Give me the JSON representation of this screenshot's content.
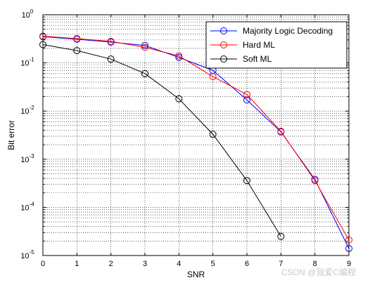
{
  "chart_data": {
    "type": "line",
    "title": "",
    "xlabel": "SNR",
    "ylabel": "Bit error",
    "x_scale": "linear",
    "y_scale": "log",
    "xlim": [
      0,
      9
    ],
    "ylim": [
      1e-05,
      1
    ],
    "x_ticks": [
      0,
      1,
      2,
      3,
      4,
      5,
      6,
      7,
      8,
      9
    ],
    "x_tick_labels": [
      "0",
      "1",
      "2",
      "3",
      "4",
      "5",
      "6",
      "7",
      "8",
      "9"
    ],
    "y_ticks": [
      {
        "value": 1e-05,
        "base": "10",
        "exp": "-5"
      },
      {
        "value": 0.0001,
        "base": "10",
        "exp": "-4"
      },
      {
        "value": 0.001,
        "base": "10",
        "exp": "-3"
      },
      {
        "value": 0.01,
        "base": "10",
        "exp": "-2"
      },
      {
        "value": 0.1,
        "base": "10",
        "exp": "-1"
      },
      {
        "value": 1,
        "base": "10",
        "exp": "0"
      }
    ],
    "grid": "dotted major and minor",
    "legend_position": "top-right",
    "series": [
      {
        "name": "Majority Logic Decoding",
        "color": "#0000ff",
        "marker": "circle",
        "x": [
          0,
          1,
          2,
          3,
          4,
          5,
          6,
          7,
          8,
          9
        ],
        "y": [
          0.35,
          0.31,
          0.27,
          0.23,
          0.13,
          0.07,
          0.017,
          0.0037,
          0.00038,
          1.4e-05
        ]
      },
      {
        "name": "Hard ML",
        "color": "#ff0000",
        "marker": "circle",
        "x": [
          0,
          1,
          2,
          3,
          4,
          5,
          6,
          7,
          8,
          9
        ],
        "y": [
          0.36,
          0.32,
          0.28,
          0.21,
          0.14,
          0.052,
          0.022,
          0.0038,
          0.00036,
          2.1e-05
        ]
      },
      {
        "name": "Soft ML",
        "color": "#000000",
        "marker": "circle",
        "x": [
          0,
          1,
          2,
          3,
          4,
          5,
          6,
          7
        ],
        "y": [
          0.24,
          0.18,
          0.12,
          0.06,
          0.018,
          0.0033,
          0.00036,
          2.5e-05
        ]
      }
    ]
  },
  "watermark": "CSDN @我爱C编程"
}
